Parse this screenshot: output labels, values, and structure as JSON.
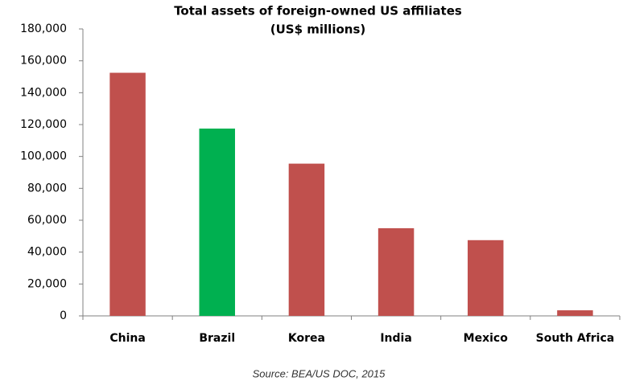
{
  "chart_data": {
    "type": "bar",
    "title": "Total assets of foreign-owned US affiliates",
    "subtitle": "(US$ millions)",
    "categories": [
      "China",
      "Brazil",
      "Korea",
      "India",
      "Mexico",
      "South Africa"
    ],
    "values": [
      152500,
      117500,
      95500,
      55000,
      47500,
      3500
    ],
    "colors": [
      "#c0504d",
      "#00b050",
      "#c0504d",
      "#c0504d",
      "#c0504d",
      "#c0504d"
    ],
    "ylim": [
      0,
      180000
    ],
    "yticks": [
      0,
      {
        "value": 20000,
        "label": "20,000"
      },
      {
        "value": 40000,
        "label": "40,000"
      },
      {
        "value": 60000,
        "label": "60,000"
      },
      {
        "value": 80000,
        "label": "80,000"
      },
      {
        "value": 100000,
        "label": "100,000"
      },
      {
        "value": 120000,
        "label": "120,000"
      },
      {
        "value": 140000,
        "label": "140,000"
      },
      {
        "value": 160000,
        "label": "160,000"
      },
      {
        "value": 180000,
        "label": "180,000"
      }
    ],
    "grid": false,
    "annotation": "Source: BEA/US DOC, 2015"
  }
}
